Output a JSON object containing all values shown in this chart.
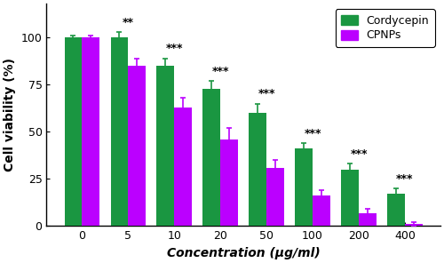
{
  "categories": [
    "0",
    "5",
    "10",
    "20",
    "50",
    "100",
    "200",
    "400"
  ],
  "cordycepin_values": [
    100,
    100,
    85,
    73,
    60,
    41,
    30,
    17
  ],
  "cpnps_values": [
    100,
    85,
    63,
    46,
    31,
    16,
    7,
    1
  ],
  "cordycepin_errors": [
    1,
    3,
    4,
    4,
    5,
    3,
    3,
    3
  ],
  "cpnps_errors": [
    1,
    4,
    5,
    6,
    4,
    3,
    2,
    1
  ],
  "cordycepin_color": "#1a9641",
  "cpnps_color": "#bb00ff",
  "bar_width": 0.38,
  "ylabel": "Cell viability (%)",
  "xlabel": "Concentration (μg/ml)",
  "ylim": [
    0,
    118
  ],
  "yticks": [
    0,
    25,
    50,
    75,
    100
  ],
  "legend_labels": [
    "Cordycepin",
    "CPNPs"
  ],
  "significance_labels": [
    "",
    "**",
    "***",
    "***",
    "***",
    "***",
    "***",
    "***"
  ],
  "axis_fontsize": 10,
  "tick_fontsize": 9,
  "sig_fontsize": 9
}
